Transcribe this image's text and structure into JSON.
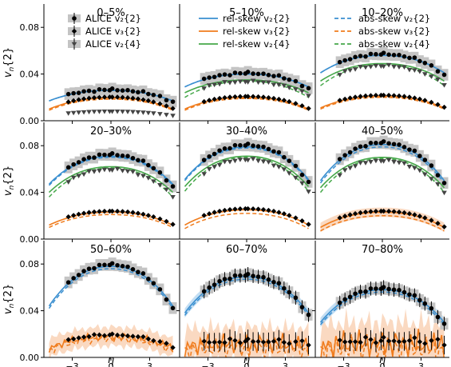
{
  "figure": {
    "ylabel": "v_n{2}",
    "xlabel": "η"
  },
  "colors": {
    "alice": "#000000",
    "v2": "#3a8fd0",
    "v3": "#f07c1d",
    "v24": "#46a84a",
    "band_v3": "#f8c9a6",
    "band_v2": "#a9d0ee",
    "sys": "#c4c4c4"
  },
  "legends": [
    {
      "panel": 0,
      "entries": [
        {
          "label": "ALICE v₂{2}",
          "marker": "circle"
        },
        {
          "label": "ALICE v₃{2}",
          "marker": "diamond"
        },
        {
          "label": "ALICE v₂{4}",
          "marker": "triangle"
        }
      ]
    },
    {
      "panel": 1,
      "entries": [
        {
          "label": "rel-skew v₂{2}",
          "series": "v2",
          "style": "solid"
        },
        {
          "label": "rel-skew v₃{2}",
          "series": "v3",
          "style": "solid"
        },
        {
          "label": "rel-skew v₂{4}",
          "series": "v24",
          "style": "solid"
        }
      ]
    },
    {
      "panel": 2,
      "entries": [
        {
          "label": "abs-skew v₂{2}",
          "series": "v2",
          "style": "dashed"
        },
        {
          "label": "abs-skew v₃{2}",
          "series": "v3",
          "style": "dashed"
        },
        {
          "label": "abs-skew v₂{4}",
          "series": "v24",
          "style": "dashed"
        }
      ]
    }
  ],
  "chart_data": {
    "type": "line",
    "xlim": [
      -5.2,
      5.2
    ],
    "ylim": [
      0,
      0.1
    ],
    "xticks": [
      -3,
      0,
      3
    ],
    "xtick_labels": [
      "−3",
      "0",
      "3"
    ],
    "yticks": [
      0,
      0.04,
      0.08
    ],
    "ytick_labels": [
      "0.00",
      "0.04",
      "0.08"
    ],
    "eta_points": [
      -3.3,
      -2.9,
      -2.5,
      -2.1,
      -1.7,
      -1.3,
      -0.9,
      -0.5,
      -0.1,
      0.1,
      0.5,
      0.9,
      1.3,
      1.7,
      2.1,
      2.5,
      2.9,
      3.3,
      3.8,
      4.3,
      4.8
    ],
    "panels": [
      {
        "title": "0–5%",
        "v2c": 0.026,
        "v2e": 0.017,
        "v3c": 0.0195,
        "v3e": 0.01,
        "v24c": 0.0,
        "v24e": 0.0,
        "v2sh": 0.0,
        "v3off": -0.001,
        "band": false,
        "noise": 0.0,
        "tri": true,
        "tribase": 0.008
      },
      {
        "title": "5–10%",
        "v2c": 0.04,
        "v2e": 0.029,
        "v3c": 0.02,
        "v3e": 0.01,
        "v24c": 0.035,
        "v24e": 0.024,
        "v2sh": 0.0,
        "v3off": -0.001,
        "band": false,
        "noise": 0.0,
        "tri": true,
        "tribase": 0.0
      },
      {
        "title": "10–20%",
        "v2c": 0.056,
        "v2e": 0.041,
        "v3c": 0.021,
        "v3e": 0.011,
        "v24c": 0.049,
        "v24e": 0.034,
        "v2sh": 0.0,
        "v3off": -0.001,
        "band": false,
        "noise": 0.0,
        "tri": true,
        "tribase": 0.0
      },
      {
        "title": "20–30%",
        "v2c": 0.071,
        "v2e": 0.047,
        "v3c": 0.023,
        "v3e": 0.012,
        "v24c": 0.062,
        "v24e": 0.04,
        "v2sh": -0.001,
        "v3off": -0.002,
        "band": false,
        "noise": 0.0,
        "tri": true,
        "tribase": 0.0
      },
      {
        "title": "30–40%",
        "v2c": 0.079,
        "v2e": 0.051,
        "v3c": 0.025,
        "v3e": 0.012,
        "v24c": 0.071,
        "v24e": 0.045,
        "v2sh": -0.001,
        "v3off": -0.003,
        "band": false,
        "noise": 0.0,
        "tri": true,
        "tribase": 0.0
      },
      {
        "title": "40–50%",
        "v2c": 0.081,
        "v2e": 0.05,
        "v3c": 0.023,
        "v3e": 0.01,
        "v24c": 0.07,
        "v24e": 0.044,
        "v2sh": -0.002,
        "v3off": -0.003,
        "band": true,
        "noise": 0.0,
        "tri": true,
        "tribase": 0.0
      },
      {
        "title": "50–60%",
        "v2c": 0.078,
        "v2e": 0.044,
        "v3c": 0.018,
        "v3e": 0.008,
        "v24c": 0.0,
        "v24e": 0.0,
        "v2sh": -0.002,
        "v3off": -0.002,
        "band": true,
        "noise": 0.004,
        "tri": false,
        "tribase": 0.0
      },
      {
        "title": "60–70%",
        "v2c": 0.069,
        "v2e": 0.038,
        "v3c": 0.012,
        "v3e": 0.01,
        "v24c": 0.0,
        "v24e": 0.0,
        "v2sh": -0.002,
        "v3off": -0.004,
        "band": true,
        "noise": 0.01,
        "tri": false,
        "tribase": 0.0
      },
      {
        "title": "70–80%",
        "v2c": 0.058,
        "v2e": 0.03,
        "v3c": 0.012,
        "v3e": 0.01,
        "v24c": 0.0,
        "v24e": 0.0,
        "v2sh": -0.002,
        "v3off": -0.004,
        "band": true,
        "noise": 0.014,
        "tri": false,
        "tribase": 0.0
      }
    ]
  }
}
